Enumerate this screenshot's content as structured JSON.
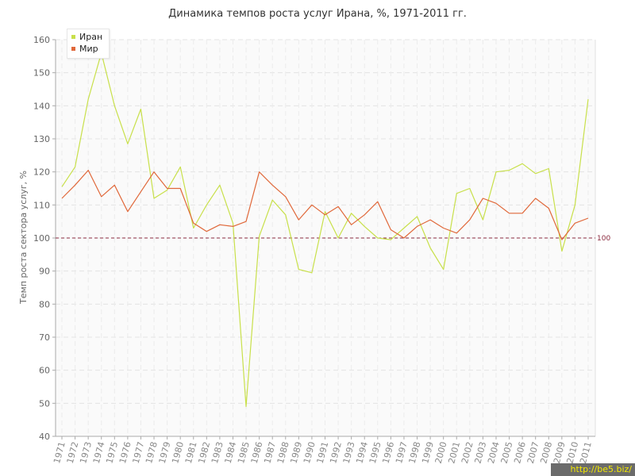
{
  "chart_data": {
    "type": "line",
    "title": "Динамика темпов роста услуг Ирана, %, 1971-2011 гг.",
    "xlabel": "",
    "ylabel": "Темп роста сектора услуг, %",
    "ylim": [
      40,
      160
    ],
    "yticks": [
      40,
      50,
      60,
      70,
      80,
      90,
      100,
      110,
      120,
      130,
      140,
      150,
      160
    ],
    "categories": [
      "1971",
      "1972",
      "1973",
      "1974",
      "1975",
      "1976",
      "1977",
      "1978",
      "1979",
      "1980",
      "1981",
      "1982",
      "1983",
      "1984",
      "1985",
      "1986",
      "1987",
      "1988",
      "1989",
      "1990",
      "1991",
      "1992",
      "1993",
      "1994",
      "1995",
      "1996",
      "1997",
      "1998",
      "1999",
      "2000",
      "2001",
      "2002",
      "2003",
      "2004",
      "2005",
      "2006",
      "2007",
      "2008",
      "2009",
      "2010",
      "2011"
    ],
    "series": [
      {
        "name": "Иран",
        "color": "#c8e04a",
        "values": [
          115.5,
          121.5,
          142,
          156,
          140,
          128.5,
          139,
          112,
          114.5,
          121.5,
          103,
          110,
          116,
          104.5,
          49,
          100.5,
          111.5,
          107,
          90.5,
          89.5,
          108,
          100,
          107.5,
          103.5,
          100,
          99.5,
          103,
          106.5,
          97,
          90.5,
          113.5,
          115,
          105.5,
          120,
          120.5,
          122.5,
          119.5,
          121,
          96,
          110,
          142
        ]
      },
      {
        "name": "Мир",
        "color": "#e0683a",
        "values": [
          112,
          116,
          120.5,
          112.5,
          116,
          108,
          114,
          120,
          115,
          115,
          104.5,
          102,
          104,
          103.5,
          105,
          120,
          116,
          112.5,
          105.5,
          110,
          107,
          109.5,
          104,
          107,
          111,
          102.5,
          100,
          103.5,
          105.5,
          103,
          101.5,
          105.5,
          112,
          110.5,
          107.5,
          107.5,
          112,
          109,
          99.5,
          104.5,
          106
        ]
      }
    ],
    "reference_line": {
      "value": 100,
      "label": "100",
      "color": "#8b2a3e"
    },
    "grid": true,
    "legend_position": "top-left"
  },
  "watermark": "http://be5.biz/"
}
